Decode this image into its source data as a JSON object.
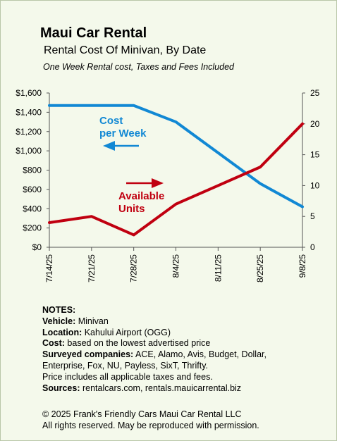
{
  "header": {
    "title": "Maui Car Rental",
    "subtitle": "Rental Cost Of Minivan, By Date",
    "note": "One Week Rental cost, Taxes and Fees Included"
  },
  "chart_data": {
    "type": "line",
    "categories": [
      "7/14/25",
      "7/21/25",
      "7/28/25",
      "8/4/25",
      "8/11/25",
      "8/25/25",
      "9/8/25"
    ],
    "series": [
      {
        "name": "Cost per Week",
        "axis": "left",
        "color": "#1188d4",
        "values": [
          1470,
          1470,
          1470,
          1300,
          980,
          660,
          420
        ]
      },
      {
        "name": "Available Units",
        "axis": "right",
        "color": "#c00010",
        "values": [
          4,
          5,
          2,
          7,
          10,
          13,
          20
        ]
      }
    ],
    "y_left": {
      "min": 0,
      "max": 1600,
      "step": 200,
      "tick_labels": [
        "$0",
        "$200",
        "$400",
        "$600",
        "$800",
        "$1,000",
        "$1,200",
        "$1,400",
        "$1,600"
      ]
    },
    "y_right": {
      "min": 0,
      "max": 25,
      "step": 5,
      "tick_labels": [
        "0",
        "5",
        "10",
        "15",
        "20",
        "25"
      ]
    },
    "annotations": [
      {
        "text_lines": [
          "Cost",
          "per Week"
        ],
        "series": "Cost per Week",
        "arrow": "left"
      },
      {
        "text_lines": [
          "Available",
          "Units"
        ],
        "series": "Available Units",
        "arrow": "right"
      }
    ],
    "grid": false,
    "legend": "none"
  },
  "notes": {
    "heading": "NOTES:",
    "vehicle_label": "Vehicle:",
    "vehicle_value": " Minivan",
    "location_label": "Location:",
    "location_value": " Kahului Airport (OGG)",
    "cost_label": "Cost:",
    "cost_value": " based on the lowest advertised price",
    "surveyed_label": "Surveyed companies:",
    "surveyed_value": " ACE, Alamo, Avis, Budget, Dollar, Enterprise, Fox, NU, Payless, SixT, Thrifty.",
    "price_note": "Price includes all applicable taxes and fees.",
    "sources_label": "Sources:",
    "sources_value": "  rentalcars.com, rentals.mauicarrental.biz"
  },
  "footer": {
    "line1": "© 2025  Frank's Friendly Cars Maui Car Rental LLC",
    "line2": "All rights reserved. May be reproduced with permission."
  }
}
